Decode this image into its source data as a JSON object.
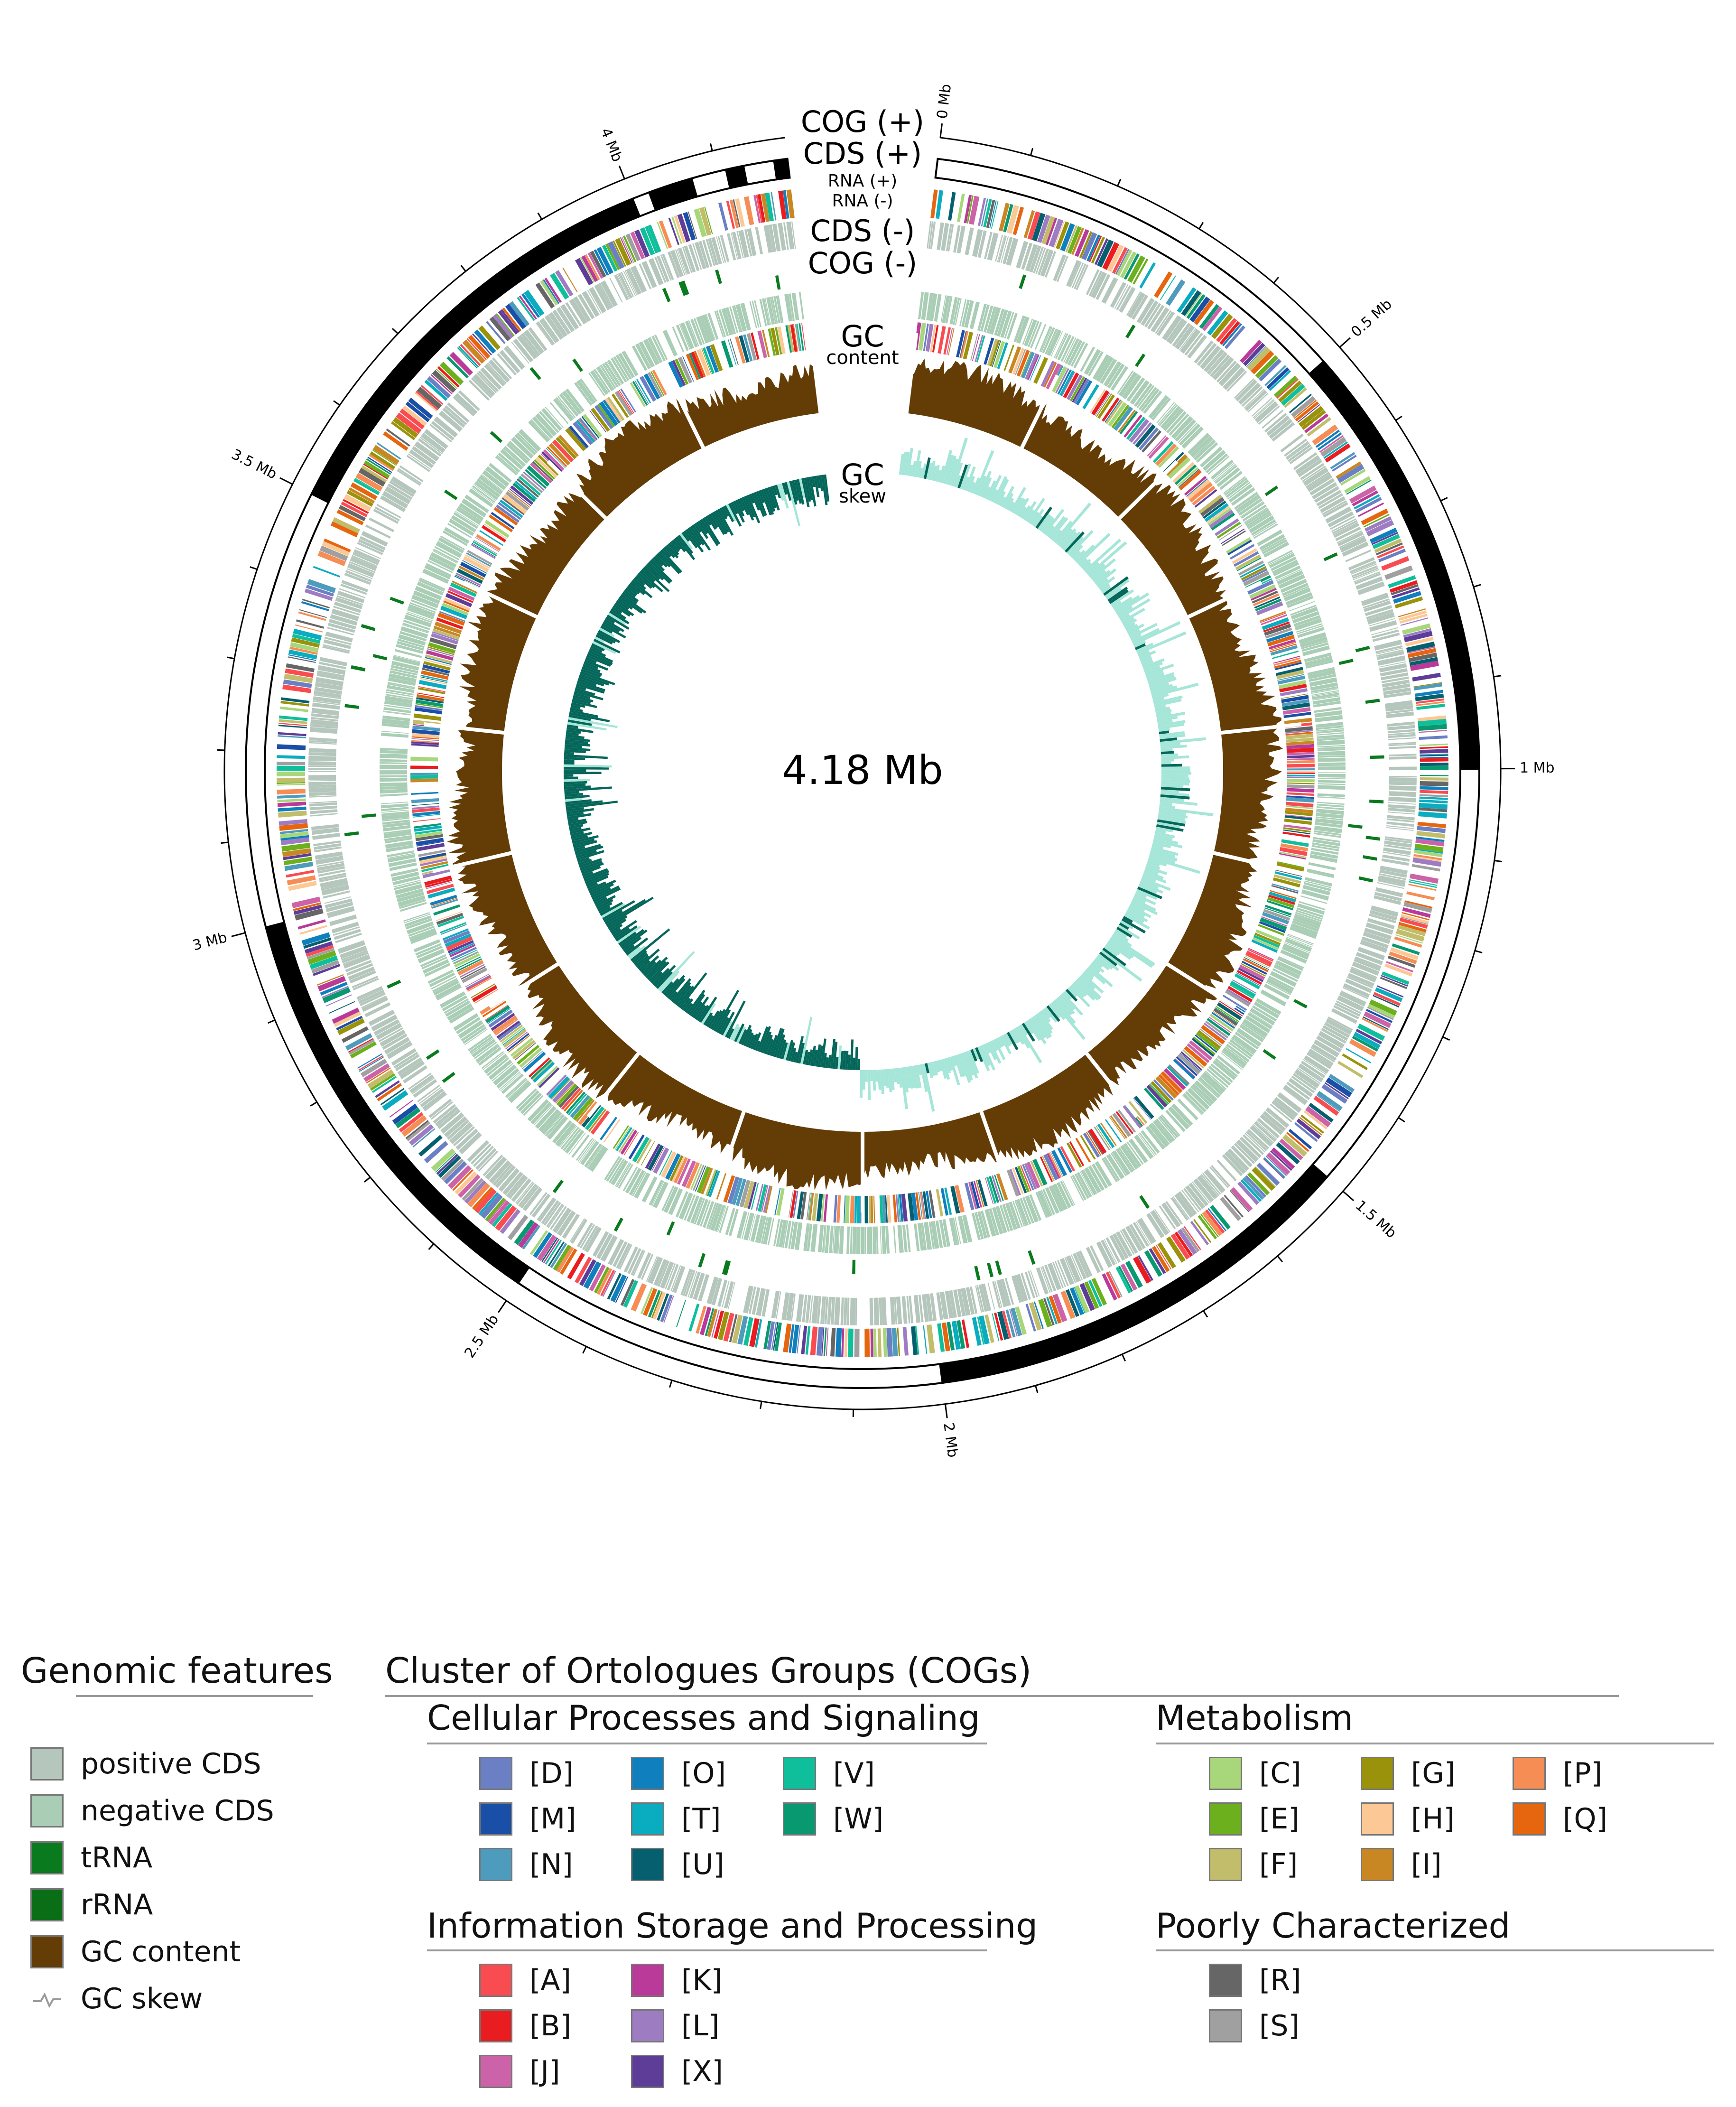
{
  "center_label": "4.18 Mb",
  "ticks": [
    {
      "mb": 0,
      "label": "0 Mb"
    },
    {
      "mb": 0.5,
      "label": "0.5 Mb"
    },
    {
      "mb": 1,
      "label": "1 Mb"
    },
    {
      "mb": 1.5,
      "label": "1.5 Mb"
    },
    {
      "mb": 2,
      "label": "2 Mb"
    },
    {
      "mb": 2.5,
      "label": "2.5 Mb"
    },
    {
      "mb": 3,
      "label": "3 Mb"
    },
    {
      "mb": 3.5,
      "label": "3.5 Mb"
    },
    {
      "mb": 4,
      "label": "4 Mb"
    }
  ],
  "genome_size_mb": 4.18,
  "track_labels": {
    "cog_plus": "COG (+)",
    "cds_plus": "CDS (+)",
    "rna_plus": "RNA (+)",
    "rna_minus": "RNA (-)",
    "cds_minus": "CDS (-)",
    "cog_minus": "COG (-)",
    "gc_content_1": "GC",
    "gc_content_2": "content",
    "gc_skew_1": "GC",
    "gc_skew_2": "skew"
  },
  "genomic_features": {
    "title": "Genomic features",
    "items": [
      {
        "label": "positive CDS",
        "color": "#b5c7bc"
      },
      {
        "label": "negative CDS",
        "color": "#a9cdb5"
      },
      {
        "label": "tRNA",
        "color": "#0a7a1e"
      },
      {
        "label": "rRNA",
        "color": "#0a6e16"
      },
      {
        "label": "GC content",
        "color": "#643c06"
      },
      {
        "label": "GC skew",
        "color": "#999999",
        "icon": "skew-line-icon"
      }
    ]
  },
  "cog": {
    "title": "Cluster of Ortologues Groups (COGs)",
    "groups": [
      {
        "title": "Cellular Processes and Signaling",
        "items": [
          {
            "label": "[D]",
            "color": "#6b7fc4"
          },
          {
            "label": "[M]",
            "color": "#1a4fa8"
          },
          {
            "label": "[N]",
            "color": "#4d9bbd"
          },
          {
            "label": "[O]",
            "color": "#0f7fbd"
          },
          {
            "label": "[T]",
            "color": "#0aacbf"
          },
          {
            "label": "[U]",
            "color": "#065f6e"
          },
          {
            "label": "[V]",
            "color": "#0fbf9c"
          },
          {
            "label": "[W]",
            "color": "#099970"
          }
        ]
      },
      {
        "title": "Metabolism",
        "items": [
          {
            "label": "[C]",
            "color": "#a8d67a"
          },
          {
            "label": "[E]",
            "color": "#6cb01e"
          },
          {
            "label": "[F]",
            "color": "#c2bd6b"
          },
          {
            "label": "[G]",
            "color": "#9a920a"
          },
          {
            "label": "[H]",
            "color": "#fcc895"
          },
          {
            "label": "[I]",
            "color": "#c98724"
          },
          {
            "label": "[P]",
            "color": "#f58d55"
          },
          {
            "label": "[Q]",
            "color": "#e5660f"
          }
        ]
      },
      {
        "title": "Information Storage and Processing",
        "items": [
          {
            "label": "[A]",
            "color": "#f94c50"
          },
          {
            "label": "[B]",
            "color": "#e91c1f"
          },
          {
            "label": "[J]",
            "color": "#cc62a8"
          },
          {
            "label": "[K]",
            "color": "#b93a98"
          },
          {
            "label": "[L]",
            "color": "#9d7cc2"
          },
          {
            "label": "[X]",
            "color": "#5e3d99"
          }
        ]
      },
      {
        "title": "Poorly Characterized",
        "items": [
          {
            "label": "[R]",
            "color": "#666666"
          },
          {
            "label": "[S]",
            "color": "#a0a0a0"
          }
        ]
      }
    ]
  }
}
